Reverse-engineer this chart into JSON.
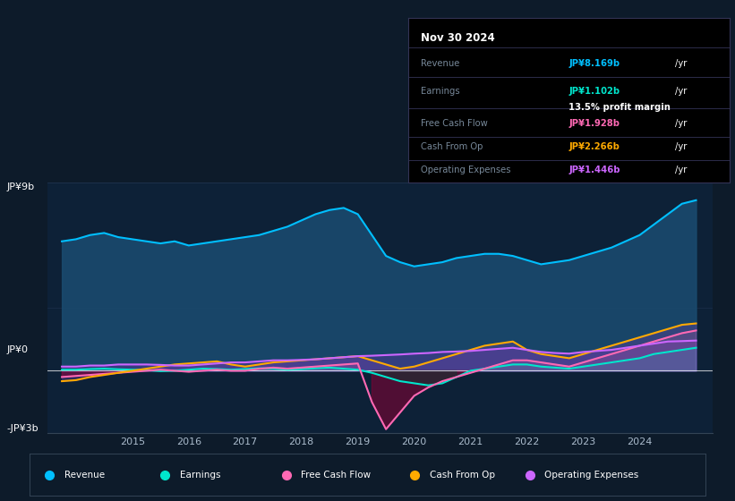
{
  "bg_color": "#0d1b2a",
  "plot_bg_color": "#0d2137",
  "title": "Nov 30 2024",
  "y_label_top": "JP¥9b",
  "y_label_mid": "JP¥0",
  "y_label_bot": "-JP¥3b",
  "x_ticks": [
    2015,
    2016,
    2017,
    2018,
    2019,
    2020,
    2021,
    2022,
    2023,
    2024
  ],
  "ylim": [
    -3000000000,
    9000000000
  ],
  "xlim_start": 2013.5,
  "xlim_end": 2025.3,
  "revenue_color": "#00bfff",
  "earnings_color": "#00e5cc",
  "fcf_color": "#ff69b4",
  "cashfromop_color": "#ffaa00",
  "opex_color": "#cc66ff",
  "revenue_fill": "#1a4a6e",
  "series_x": [
    2013.75,
    2014.0,
    2014.25,
    2014.5,
    2014.75,
    2015.0,
    2015.25,
    2015.5,
    2015.75,
    2016.0,
    2016.25,
    2016.5,
    2016.75,
    2017.0,
    2017.25,
    2017.5,
    2017.75,
    2018.0,
    2018.25,
    2018.5,
    2018.75,
    2019.0,
    2019.25,
    2019.5,
    2019.75,
    2020.0,
    2020.25,
    2020.5,
    2020.75,
    2021.0,
    2021.25,
    2021.5,
    2021.75,
    2022.0,
    2022.25,
    2022.5,
    2022.75,
    2023.0,
    2023.25,
    2023.5,
    2023.75,
    2024.0,
    2024.25,
    2024.5,
    2024.75,
    2025.0
  ],
  "revenue": [
    6200000000,
    6300000000,
    6500000000,
    6600000000,
    6400000000,
    6300000000,
    6200000000,
    6100000000,
    6200000000,
    6000000000,
    6100000000,
    6200000000,
    6300000000,
    6400000000,
    6500000000,
    6700000000,
    6900000000,
    7200000000,
    7500000000,
    7700000000,
    7800000000,
    7500000000,
    6500000000,
    5500000000,
    5200000000,
    5000000000,
    5100000000,
    5200000000,
    5400000000,
    5500000000,
    5600000000,
    5600000000,
    5500000000,
    5300000000,
    5100000000,
    5200000000,
    5300000000,
    5500000000,
    5700000000,
    5900000000,
    6200000000,
    6500000000,
    7000000000,
    7500000000,
    8000000000,
    8169000000
  ],
  "earnings": [
    50000000,
    50000000,
    80000000,
    100000000,
    70000000,
    50000000,
    30000000,
    -20000000,
    0,
    50000000,
    100000000,
    80000000,
    50000000,
    80000000,
    120000000,
    100000000,
    50000000,
    80000000,
    120000000,
    150000000,
    100000000,
    50000000,
    -100000000,
    -300000000,
    -500000000,
    -600000000,
    -700000000,
    -600000000,
    -300000000,
    0,
    100000000,
    200000000,
    300000000,
    300000000,
    200000000,
    150000000,
    100000000,
    200000000,
    300000000,
    400000000,
    500000000,
    600000000,
    800000000,
    900000000,
    1000000000,
    1102000000
  ],
  "fcf": [
    -300000000,
    -250000000,
    -200000000,
    -150000000,
    -100000000,
    -50000000,
    0,
    50000000,
    0,
    -50000000,
    0,
    50000000,
    0,
    0,
    100000000,
    150000000,
    100000000,
    150000000,
    200000000,
    250000000,
    300000000,
    350000000,
    -1500000000,
    -2800000000,
    -2000000000,
    -1200000000,
    -800000000,
    -500000000,
    -300000000,
    -100000000,
    100000000,
    300000000,
    500000000,
    500000000,
    400000000,
    300000000,
    200000000,
    400000000,
    600000000,
    800000000,
    1000000000,
    1200000000,
    1400000000,
    1600000000,
    1800000000,
    1928000000
  ],
  "cashfromop": [
    -500000000,
    -450000000,
    -300000000,
    -200000000,
    -100000000,
    0,
    100000000,
    200000000,
    300000000,
    350000000,
    400000000,
    450000000,
    300000000,
    200000000,
    300000000,
    400000000,
    450000000,
    500000000,
    550000000,
    600000000,
    650000000,
    700000000,
    500000000,
    300000000,
    100000000,
    200000000,
    400000000,
    600000000,
    800000000,
    1000000000,
    1200000000,
    1300000000,
    1400000000,
    1000000000,
    800000000,
    700000000,
    600000000,
    800000000,
    1000000000,
    1200000000,
    1400000000,
    1600000000,
    1800000000,
    2000000000,
    2200000000,
    2266000000
  ],
  "opex": [
    200000000,
    200000000,
    250000000,
    250000000,
    300000000,
    300000000,
    300000000,
    280000000,
    250000000,
    250000000,
    300000000,
    350000000,
    400000000,
    400000000,
    450000000,
    500000000,
    500000000,
    520000000,
    550000000,
    600000000,
    650000000,
    700000000,
    720000000,
    750000000,
    780000000,
    820000000,
    850000000,
    900000000,
    920000000,
    950000000,
    1000000000,
    1050000000,
    1100000000,
    1000000000,
    900000000,
    850000000,
    820000000,
    900000000,
    950000000,
    1000000000,
    1100000000,
    1200000000,
    1300000000,
    1400000000,
    1420000000,
    1446000000
  ],
  "legend_items": [
    {
      "color": "#00bfff",
      "label": "Revenue"
    },
    {
      "color": "#00e5cc",
      "label": "Earnings"
    },
    {
      "color": "#ff69b4",
      "label": "Free Cash Flow"
    },
    {
      "color": "#ffaa00",
      "label": "Cash From Op"
    },
    {
      "color": "#cc66ff",
      "label": "Operating Expenses"
    }
  ],
  "info_rows": [
    {
      "label": "Revenue",
      "value": "JP¥8.169b",
      "value_color": "#00bfff",
      "suffix": "/yr",
      "sub_label": null,
      "sub_value": null,
      "sub_color": null
    },
    {
      "label": "Earnings",
      "value": "JP¥1.102b",
      "value_color": "#00e5cc",
      "suffix": "/yr",
      "sub_label": "",
      "sub_value": "13.5% profit margin",
      "sub_color": "white"
    },
    {
      "label": "Free Cash Flow",
      "value": "JP¥1.928b",
      "value_color": "#ff69b4",
      "suffix": "/yr",
      "sub_label": null,
      "sub_value": null,
      "sub_color": null
    },
    {
      "label": "Cash From Op",
      "value": "JP¥2.266b",
      "value_color": "#ffaa00",
      "suffix": "/yr",
      "sub_label": null,
      "sub_value": null,
      "sub_color": null
    },
    {
      "label": "Operating Expenses",
      "value": "JP¥1.446b",
      "value_color": "#cc66ff",
      "suffix": "/yr",
      "sub_label": null,
      "sub_value": null,
      "sub_color": null
    }
  ]
}
